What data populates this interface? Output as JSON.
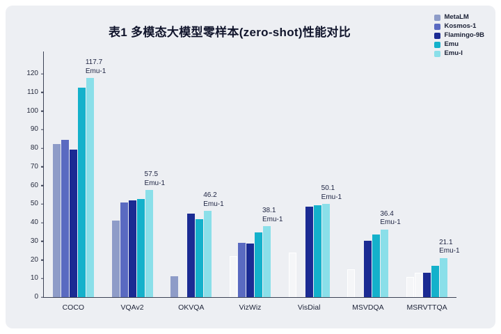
{
  "title": "表1 多模态大模型零样本(zero-shot)性能对比",
  "panel": {
    "background": "#edeff3",
    "outer_background": "#ffffff"
  },
  "chart_data": {
    "type": "bar",
    "title": "表1 多模态大模型零样本(zero-shot)性能对比",
    "categories": [
      "COCO",
      "VQAv2",
      "OKVQA",
      "VizWiz",
      "VisDial",
      "MSVDQA",
      "MSRVTTQA"
    ],
    "series": [
      {
        "name": "MetaLM",
        "color": "#8e9cc8",
        "values": [
          82.2,
          41.1,
          11.4,
          null,
          null,
          null,
          null
        ]
      },
      {
        "name": "Kosmos-1",
        "color": "#5a6ac1",
        "values": [
          84.7,
          51.0,
          null,
          29.2,
          null,
          null,
          null
        ]
      },
      {
        "name": "Flamingo-9B",
        "color": "#1b2b93",
        "values": [
          79.4,
          51.8,
          44.7,
          28.8,
          48.6,
          30.2,
          13.0
        ]
      },
      {
        "name": "Emu",
        "color": "#14b1cb",
        "values": [
          112.4,
          52.9,
          41.8,
          34.9,
          49.3,
          33.6,
          16.8
        ]
      },
      {
        "name": "Emu-I",
        "color": "#8adfe9",
        "values": [
          117.7,
          57.5,
          46.2,
          38.1,
          50.1,
          36.4,
          21.1
        ]
      }
    ],
    "annotations": [
      {
        "category": "COCO",
        "value": "117.7",
        "label": "Emu-1"
      },
      {
        "category": "VQAv2",
        "value": "57.5",
        "label": "Emu-1"
      },
      {
        "category": "OKVQA",
        "value": "46.2",
        "label": "Emu-1"
      },
      {
        "category": "VizWiz",
        "value": "38.1",
        "label": "Emu-1"
      },
      {
        "category": "VisDial",
        "value": "50.1",
        "label": "Emu-1"
      },
      {
        "category": "MSVDQA",
        "value": "36.4",
        "label": "Emu-1"
      },
      {
        "category": "MSRVTTQA",
        "value": "21.1",
        "label": "Emu-1"
      }
    ],
    "ghost_bars": [
      {
        "category_index": 3,
        "series_index": 0,
        "approx_value": 22
      },
      {
        "category_index": 4,
        "series_index": 0,
        "approx_value": 24
      },
      {
        "category_index": 5,
        "series_index": 0,
        "approx_value": 15
      },
      {
        "category_index": 6,
        "series_index": 0,
        "approx_value": 11
      },
      {
        "category_index": 6,
        "series_index": 1,
        "approx_value": 13
      }
    ],
    "y_ticks": [
      0,
      10,
      20,
      30,
      40,
      50,
      60,
      70,
      80,
      90,
      100,
      110,
      120
    ],
    "ylim": [
      0,
      120
    ],
    "y_axis_draw_max": 132,
    "grid": false,
    "legend_position": "top-right",
    "legend": [
      "MetaLM",
      "Kosmos-1",
      "Flamingo-9B",
      "Emu",
      "Emu-I"
    ]
  }
}
